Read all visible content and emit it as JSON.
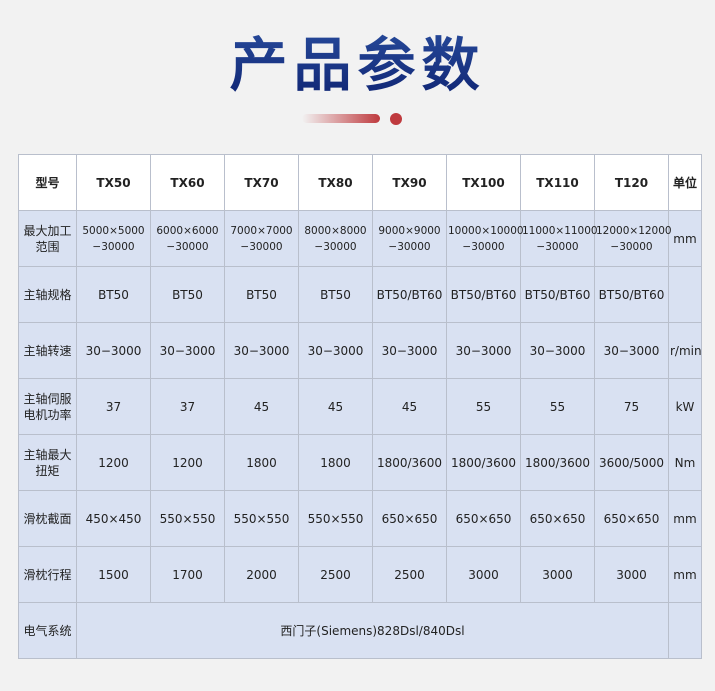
{
  "title": "产品参数",
  "colors": {
    "title": "#1b3a8e",
    "accent": "#bf3a3e",
    "row_bg": "#d9e1f2"
  },
  "table": {
    "headers": [
      "型号",
      "TX50",
      "TX60",
      "TX70",
      "TX80",
      "TX90",
      "TX100",
      "TX110",
      "T120",
      "单位"
    ],
    "rows": [
      {
        "label": "最大加工范围",
        "values": [
          "5000×5000 −30000",
          "6000×6000 −30000",
          "7000×7000 −30000",
          "8000×8000 −30000",
          "9000×9000 −30000",
          "10000×10000 −30000",
          "11000×11000 −30000",
          "12000×12000 −30000"
        ],
        "unit": "mm"
      },
      {
        "label": "主轴规格",
        "values": [
          "BT50",
          "BT50",
          "BT50",
          "BT50",
          "BT50/BT60",
          "BT50/BT60",
          "BT50/BT60",
          "BT50/BT60"
        ],
        "unit": ""
      },
      {
        "label": "主轴转速",
        "values": [
          "30−3000",
          "30−3000",
          "30−3000",
          "30−3000",
          "30−3000",
          "30−3000",
          "30−3000",
          "30−3000"
        ],
        "unit": "r/min"
      },
      {
        "label": "主轴伺服电机功率",
        "values": [
          "37",
          "37",
          "45",
          "45",
          "45",
          "55",
          "55",
          "75"
        ],
        "unit": "kW"
      },
      {
        "label": "主轴最大扭矩",
        "values": [
          "1200",
          "1200",
          "1800",
          "1800",
          "1800/3600",
          "1800/3600",
          "1800/3600",
          "3600/5000"
        ],
        "unit": "Nm"
      },
      {
        "label": "滑枕截面",
        "values": [
          "450×450",
          "550×550",
          "550×550",
          "550×550",
          "650×650",
          "650×650",
          "650×650",
          "650×650"
        ],
        "unit": "mm"
      },
      {
        "label": "滑枕行程",
        "values": [
          "1500",
          "1700",
          "2000",
          "2500",
          "2500",
          "3000",
          "3000",
          "3000"
        ],
        "unit": "mm"
      }
    ],
    "electrical": {
      "label": "电气系统",
      "value": "西门子(Siemens)828Dsl/840Dsl"
    }
  }
}
